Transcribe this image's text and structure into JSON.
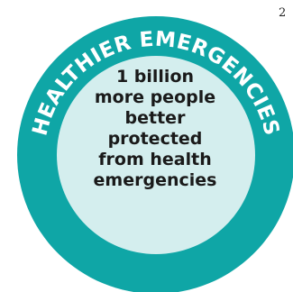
{
  "page_number": "2",
  "badge": {
    "arc_label": "HEALTHIER EMERGENCIES",
    "lines": [
      "1 billion",
      "more people",
      "better",
      "protected",
      "from health",
      "emergencies"
    ]
  },
  "colors": {
    "ring": "#0fa6a6",
    "inner_fill": "#d4eeee",
    "arc_text": "#ffffff",
    "center_text": "#1a1a1a"
  }
}
